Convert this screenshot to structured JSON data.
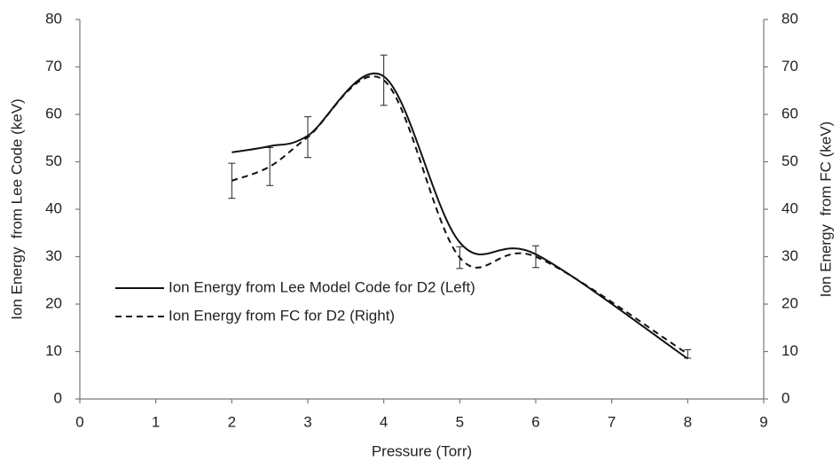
{
  "chart_data": {
    "type": "line",
    "x_label": "Pressure (Torr)",
    "y_label": "Ion Energy  from Lee Code (keV)",
    "y2_label": "Ion Energy  from FC (keV)",
    "xlim": [
      0,
      9
    ],
    "xticks": [
      0,
      1,
      2,
      3,
      4,
      5,
      6,
      7,
      8,
      9
    ],
    "ylim": [
      0,
      80
    ],
    "yticks": [
      0,
      10,
      20,
      30,
      40,
      50,
      60,
      70,
      80
    ],
    "y2lim": [
      0,
      80
    ],
    "y2ticks": [
      0,
      10,
      20,
      30,
      40,
      50,
      60,
      70,
      80
    ],
    "grid": false,
    "legend": "lower left",
    "smooth": true,
    "x": [
      2,
      2.5,
      3,
      4,
      5,
      6,
      8
    ],
    "series": [
      {
        "name": "Ion Energy from Lee Model Code for D2 (Left)",
        "color": "#111111",
        "line_style": "solid",
        "values": [
          52,
          53.3,
          55.5,
          68,
          33,
          30.5,
          8.5
        ]
      },
      {
        "name": "Ion Energy from FC for D2 (Right)",
        "color": "#111111",
        "line_style": "dashed",
        "axis": "y2",
        "values": [
          46,
          49,
          55.2,
          67.2,
          29.8,
          30,
          9.5
        ],
        "errors": [
          3.7,
          4,
          4.3,
          5.3,
          2.3,
          2.3,
          0.9
        ]
      }
    ]
  }
}
